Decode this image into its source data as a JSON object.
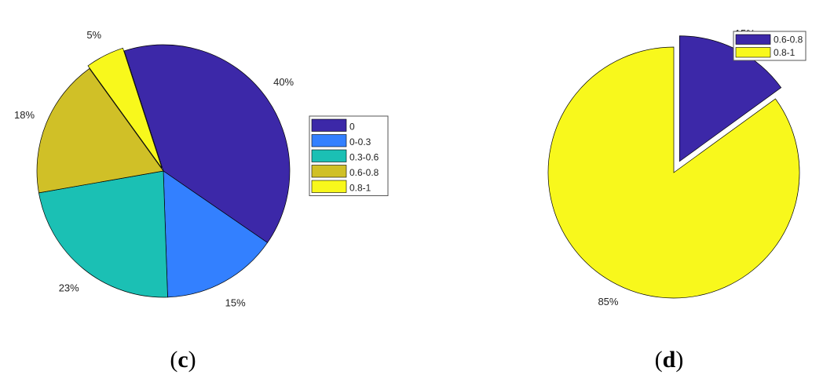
{
  "chart_data": [
    {
      "type": "pie",
      "panel": "(c)",
      "caption": {
        "open": "(",
        "letter": "c",
        "close": ")"
      },
      "categories": [
        "0",
        "0-0.3",
        "0.3-0.6",
        "0.6-0.8",
        "0.8-1"
      ],
      "values": [
        40,
        15,
        23,
        18,
        5
      ],
      "labels": [
        "40%",
        "15%",
        "23%",
        "18%",
        "5%"
      ],
      "colors": [
        "#3c28a8",
        "#3380ff",
        "#1bc0b4",
        "#d0c027",
        "#f8f81c"
      ],
      "exploded": [
        "0.8-1"
      ],
      "start_angle_deg": 0,
      "direction": "counterclockwise",
      "legend": {
        "entries": [
          "0",
          "0-0.3",
          "0.3-0.6",
          "0.6-0.8",
          "0.8-1"
        ],
        "placement": "right"
      }
    },
    {
      "type": "pie",
      "panel": "(d)",
      "caption": {
        "open": "(",
        "letter": "d",
        "close": ")"
      },
      "categories": [
        "0.6-0.8",
        "0.8-1"
      ],
      "values": [
        15,
        85
      ],
      "labels": [
        "15%",
        "85%"
      ],
      "colors": [
        "#3c28a8",
        "#f8f81c"
      ],
      "exploded": [
        "0.6-0.8"
      ],
      "start_angle_deg": 0,
      "direction": "counterclockwise",
      "legend": {
        "entries": [
          "0.6-0.8",
          "0.8-1"
        ],
        "placement": "top-right"
      }
    }
  ]
}
